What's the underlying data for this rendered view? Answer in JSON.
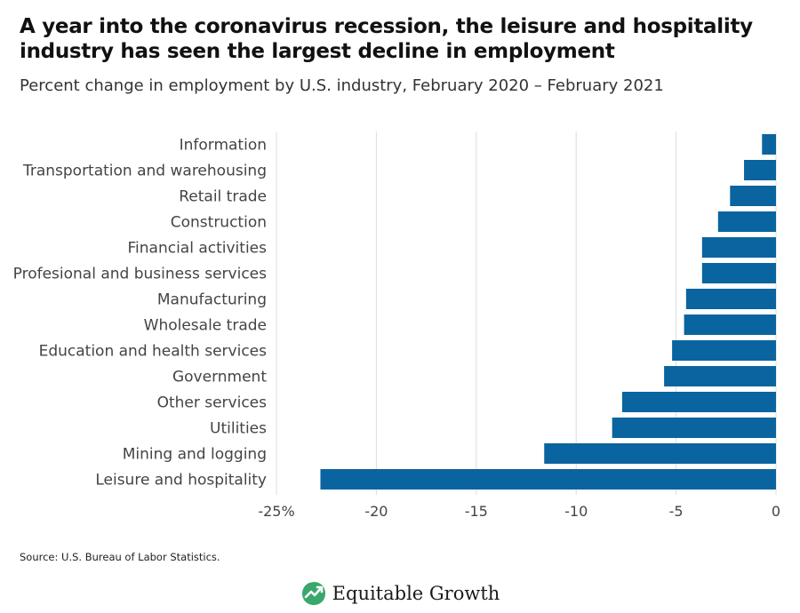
{
  "title": "A year into the coronavirus recession, the leisure and hospitality industry has seen the largest decline in employment",
  "subtitle": "Percent change in employment by U.S. industry, February 2020 – February 2021",
  "source": "Source: U.S. Bureau of Labor Statistics.",
  "brand": {
    "name": "Equitable Growth",
    "logo_icon": "growth-arrow-logo"
  },
  "colors": {
    "bar": "#0a64a0",
    "grid": "#dcdcdc",
    "label": "#444444"
  },
  "chart_data": {
    "type": "bar",
    "orientation": "horizontal",
    "categories": [
      "Information",
      "Transportation and warehousing",
      "Retail trade",
      "Construction",
      "Financial activities",
      "Profesional and business services",
      "Manufacturing",
      "Wholesale trade",
      "Education and health services",
      "Government",
      "Other services",
      "Utilities",
      "Mining and logging",
      "Leisure and hospitality"
    ],
    "values": [
      -0.7,
      -1.6,
      -2.3,
      -2.9,
      -3.7,
      -3.7,
      -4.5,
      -4.6,
      -5.2,
      -5.6,
      -7.7,
      -8.2,
      -11.6,
      -22.8
    ],
    "xlim": [
      -25,
      0
    ],
    "xticks": [
      -25,
      -20,
      -15,
      -10,
      -5,
      0
    ],
    "xtick_labels": [
      "-25%",
      "-20",
      "-15",
      "-10",
      "-5",
      "0"
    ],
    "grid": true,
    "legend": "none"
  }
}
